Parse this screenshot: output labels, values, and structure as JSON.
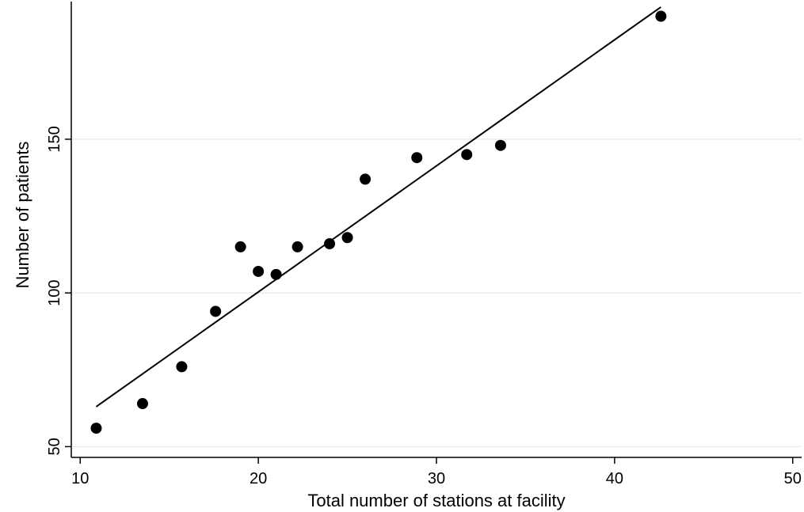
{
  "chart_data": {
    "type": "scatter",
    "title": "",
    "xlabel": "Total number of stations at facility",
    "ylabel": "Number of patients",
    "xlim": [
      9.5,
      50.5
    ],
    "ylim": [
      46.5,
      194
    ],
    "xticks": [
      10,
      20,
      30,
      40,
      50
    ],
    "xtick_labels": [
      "10",
      "20",
      "30",
      "40",
      "50"
    ],
    "yticks": [
      50,
      100,
      150
    ],
    "ytick_labels": [
      "50",
      "100",
      "150"
    ],
    "grid": "horizontal",
    "legend": "none",
    "colors": {
      "marker": "#000000",
      "fit_line": "#000000",
      "grid": "#e6eef1",
      "axis": "#000000"
    },
    "series": [
      {
        "x": [
          10.9,
          13.5,
          15.7,
          17.6,
          19.0,
          20.0,
          21.0,
          22.2,
          24.0,
          25.0,
          26.0,
          28.9,
          31.7,
          33.6,
          42.6
        ],
        "y": [
          56,
          64,
          76,
          94,
          115,
          107,
          106,
          115,
          116,
          118,
          137,
          144,
          145,
          148,
          190
        ]
      }
    ],
    "fit_line": {
      "x": [
        10.9,
        42.6
      ],
      "y": [
        63,
        193
      ]
    }
  }
}
